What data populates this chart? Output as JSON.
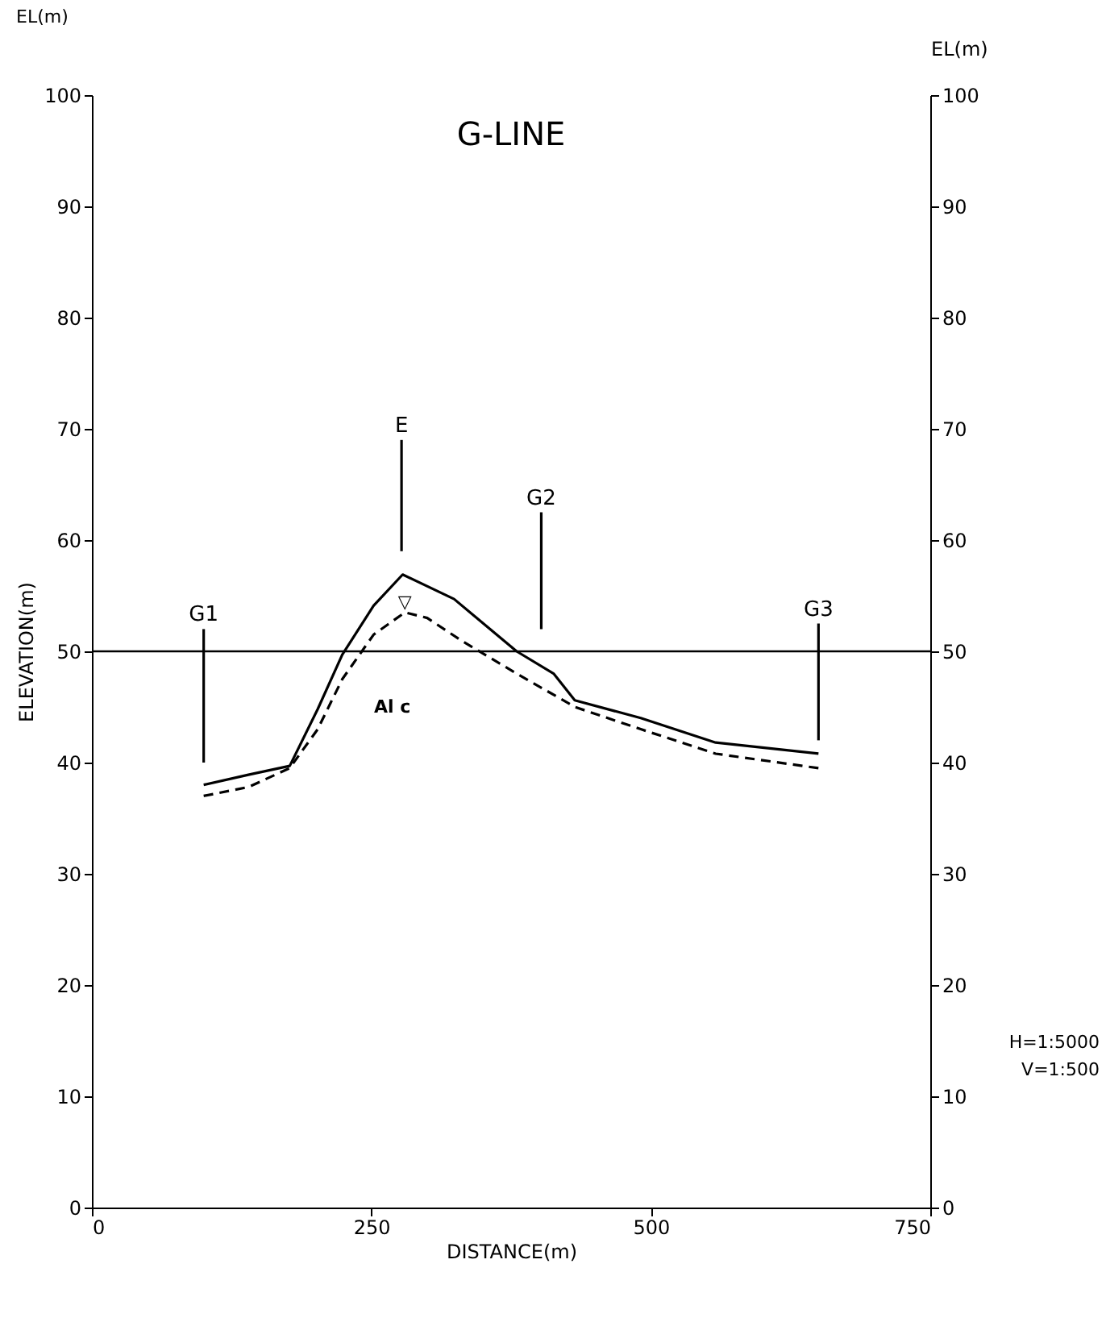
{
  "chart_data": {
    "type": "line",
    "title": "G-LINE",
    "xlabel": "DISTANCE(m)",
    "ylabel": "ELEVATION(m)",
    "y2label": "EL(m)",
    "x": [
      100,
      140,
      177,
      202,
      224,
      252,
      278,
      324,
      380,
      413,
      432,
      491,
      558,
      650
    ],
    "series": [
      {
        "color": "#000000",
        "line_style": "solid",
        "values": [
          38,
          38.9,
          39.7,
          44.8,
          49.7,
          54.1,
          56.9,
          54.7,
          50,
          48,
          45.6,
          44,
          41.8,
          40.8
        ]
      },
      {
        "color": "#000000",
        "line_style": "dashed",
        "x": [
          100,
          140,
          177,
          202,
          224,
          252,
          280,
          300,
          330,
          380,
          432,
          491,
          558,
          650
        ],
        "values": [
          37,
          37.8,
          39.5,
          43,
          47.5,
          51.5,
          53.5,
          53,
          51,
          48,
          45,
          43,
          40.8,
          39.5
        ]
      },
      {
        "name": "G1",
        "color": "#000000",
        "line_style": "solid",
        "x": [
          100,
          100
        ],
        "values": [
          52,
          40
        ]
      },
      {
        "name": "E",
        "color": "#000000",
        "line_style": "solid",
        "x": [
          277,
          277
        ],
        "values": [
          69,
          59
        ]
      },
      {
        "name": "G2",
        "color": "#000000",
        "line_style": "solid",
        "x": [
          402,
          402
        ],
        "values": [
          62.5,
          52
        ]
      },
      {
        "name": "G3",
        "color": "#000000",
        "line_style": "solid",
        "x": [
          650,
          650
        ],
        "values": [
          52.5,
          42
        ]
      }
    ],
    "xlim": [
      0,
      750
    ],
    "xticks": [
      0,
      250,
      500,
      750
    ],
    "ylim": [
      0,
      100
    ],
    "yticks": [
      0,
      10,
      20,
      30,
      40,
      50,
      60,
      70,
      80,
      90,
      100
    ],
    "y2lim": [
      0,
      100
    ],
    "y2ticks": [
      0,
      10,
      20,
      30,
      40,
      50,
      60,
      70,
      80,
      90,
      100
    ],
    "ref_lines": [
      {
        "axis": "y",
        "value": 50,
        "color": "#000000"
      }
    ],
    "annotations": [
      {
        "text": "▽",
        "x": 280,
        "y": 53.5
      },
      "Al c",
      "EL(m)",
      "H=1:5000",
      "V=1:500"
    ],
    "grid": false,
    "marker": "none"
  }
}
